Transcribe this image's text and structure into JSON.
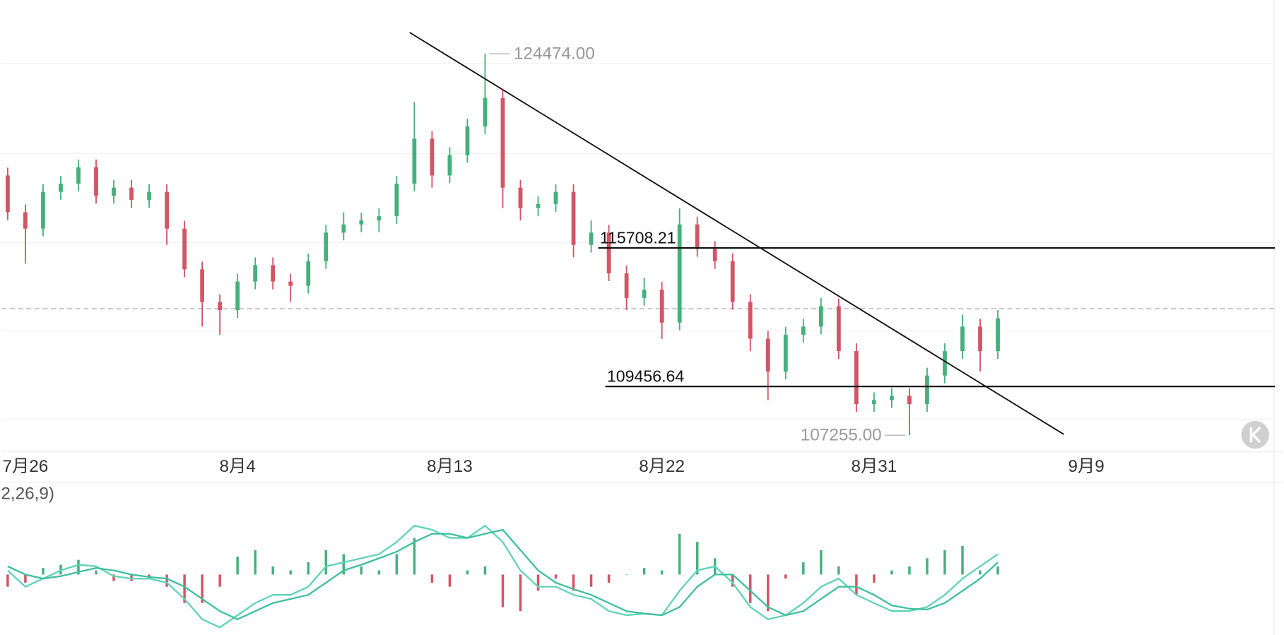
{
  "chart_data": {
    "type": "candlestick",
    "x": [
      206.25,
      207,
      207.75,
      208.5,
      209.25,
      210,
      210.75,
      211.5,
      212.25,
      213,
      213.75,
      214.5,
      215.25,
      216,
      216.75,
      217.5,
      218.25,
      219,
      219.75,
      220.5,
      221.25,
      222,
      222.75,
      223.5,
      224.25,
      225,
      225.75,
      226.5,
      227.25,
      228,
      228.75,
      229.5,
      230.25,
      231,
      231.75,
      232.5,
      233.25,
      234,
      234.75,
      235.5,
      236.25,
      237,
      237.75,
      238.5,
      239.25,
      240,
      240.75,
      241.5,
      242.25,
      243,
      243.75,
      244.5,
      245.25,
      246,
      246.75,
      247.5,
      248.25
    ],
    "open": [
      118980,
      117320,
      116580,
      118240,
      118610,
      119350,
      118060,
      118430,
      117870,
      118240,
      116580,
      114740,
      113270,
      112900,
      114190,
      114930,
      114190,
      114000,
      115110,
      116400,
      116770,
      116950,
      117140,
      118610,
      120640,
      118980,
      119900,
      121190,
      122480,
      118430,
      117510,
      117690,
      118240,
      115850,
      116400,
      114560,
      113450,
      113820,
      112340,
      116770,
      115660,
      115110,
      113270,
      111610,
      110130,
      111790,
      112160,
      113080,
      111050,
      108660,
      108840,
      109030,
      108660,
      109950,
      111050,
      112160,
      111050
    ],
    "high": [
      119330,
      117670,
      118590,
      118960,
      119700,
      119700,
      118780,
      118780,
      118590,
      118590,
      116930,
      115090,
      113620,
      114540,
      115280,
      115280,
      114540,
      115460,
      116750,
      117320,
      117300,
      117490,
      118960,
      122300,
      120990,
      120250,
      121540,
      124474,
      122830,
      118780,
      118040,
      118590,
      118590,
      116950,
      116750,
      114910,
      114370,
      114170,
      117500,
      117120,
      116010,
      115460,
      113620,
      111960,
      112140,
      112510,
      113450,
      113430,
      111400,
      109190,
      109380,
      109380,
      110300,
      111400,
      112700,
      112510,
      112900
    ],
    "low": [
      116970,
      115000,
      116230,
      117890,
      118260,
      117710,
      117710,
      117520,
      117520,
      115850,
      114390,
      112160,
      111790,
      112550,
      113840,
      113840,
      113270,
      113650,
      114760,
      116050,
      116420,
      116420,
      116790,
      118260,
      118430,
      118630,
      119550,
      120840,
      117510,
      116950,
      117140,
      117340,
      115280,
      115500,
      114210,
      112900,
      113100,
      111600,
      111990,
      115310,
      114760,
      112920,
      111050,
      108840,
      109780,
      111440,
      111810,
      110700,
      108310,
      108310,
      108490,
      107255,
      108310,
      109600,
      110700,
      110130,
      110700
    ],
    "close": [
      117320,
      116580,
      118240,
      118610,
      119350,
      118060,
      118430,
      117870,
      118240,
      116580,
      114740,
      113270,
      112900,
      114190,
      114930,
      114190,
      114000,
      115110,
      116400,
      116770,
      116950,
      117140,
      118610,
      120640,
      118980,
      119900,
      121190,
      122480,
      118430,
      117510,
      117690,
      118240,
      115850,
      116400,
      114560,
      113450,
      113820,
      112340,
      116770,
      115660,
      115110,
      113270,
      111610,
      110130,
      111790,
      112160,
      113080,
      111050,
      108660,
      108840,
      109030,
      108660,
      109950,
      111050,
      112160,
      111050,
      112530
    ],
    "up_color": "#46b07c",
    "down_color": "#d25566",
    "xlim": [
      206,
      260
    ],
    "ylim": [
      106500,
      126900
    ],
    "xticks": [
      {
        "value": 207,
        "label": "7月26"
      },
      {
        "value": 216,
        "label": "8月4"
      },
      {
        "value": 225,
        "label": "8月13"
      },
      {
        "value": 234,
        "label": "8月22"
      },
      {
        "value": 243,
        "label": "8月31"
      },
      {
        "value": 252,
        "label": "9月9"
      }
    ],
    "last_price": 112970,
    "high_marker": {
      "value": 124474,
      "label": "124474.00"
    },
    "low_marker": {
      "value": 107255,
      "label": "107255.00"
    },
    "levels": [
      {
        "value": 115708.21,
        "from": 231.3
      },
      {
        "value": 109456.64,
        "from": 231.6
      }
    ],
    "trendline": {
      "x": [
        223.3,
        251.05
      ],
      "y": [
        125433,
        107293
      ]
    },
    "indicator": {
      "label": "2,26,9)",
      "ylim": [
        -1000,
        1000
      ],
      "hist": [
        -180,
        -120,
        96,
        144,
        216,
        60,
        -96,
        -96,
        -60,
        -180,
        -420,
        -420,
        -180,
        264,
        360,
        120,
        60,
        180,
        360,
        300,
        120,
        60,
        300,
        540,
        -120,
        -180,
        60,
        120,
        -480,
        -540,
        -240,
        -60,
        -240,
        -180,
        -120,
        0,
        96,
        60,
        600,
        480,
        240,
        -180,
        -420,
        -540,
        -60,
        180,
        360,
        120,
        -300,
        -120,
        60,
        120,
        240,
        360,
        420,
        60,
        120
      ],
      "dif": {
        "color": "#5fd3b8",
        "values": [
          60,
          -180,
          -60,
          60,
          144,
          120,
          -24,
          -60,
          -60,
          -120,
          -360,
          -660,
          -780,
          -600,
          -420,
          -300,
          -300,
          -180,
          120,
          180,
          240,
          300,
          480,
          720,
          660,
          540,
          540,
          720,
          480,
          60,
          -180,
          -180,
          -300,
          -360,
          -540,
          -600,
          -576,
          -600,
          -240,
          60,
          120,
          -120,
          -480,
          -660,
          -600,
          -420,
          -180,
          -60,
          -300,
          -420,
          -540,
          -540,
          -480,
          -300,
          -60,
          120,
          300
        ]
      },
      "dea": {
        "color": "#3fbf9f",
        "values": [
          120,
          0,
          -60,
          -24,
          36,
          96,
          60,
          0,
          -36,
          -60,
          -180,
          -360,
          -540,
          -660,
          -540,
          -420,
          -360,
          -300,
          -120,
          60,
          144,
          240,
          336,
          480,
          600,
          600,
          540,
          600,
          660,
          360,
          60,
          -120,
          -216,
          -300,
          -420,
          -540,
          -576,
          -600,
          -480,
          -180,
          0,
          0,
          -240,
          -480,
          -600,
          -540,
          -360,
          -180,
          -180,
          -300,
          -456,
          -504,
          -516,
          -420,
          -240,
          -60,
          180
        ]
      }
    }
  }
}
